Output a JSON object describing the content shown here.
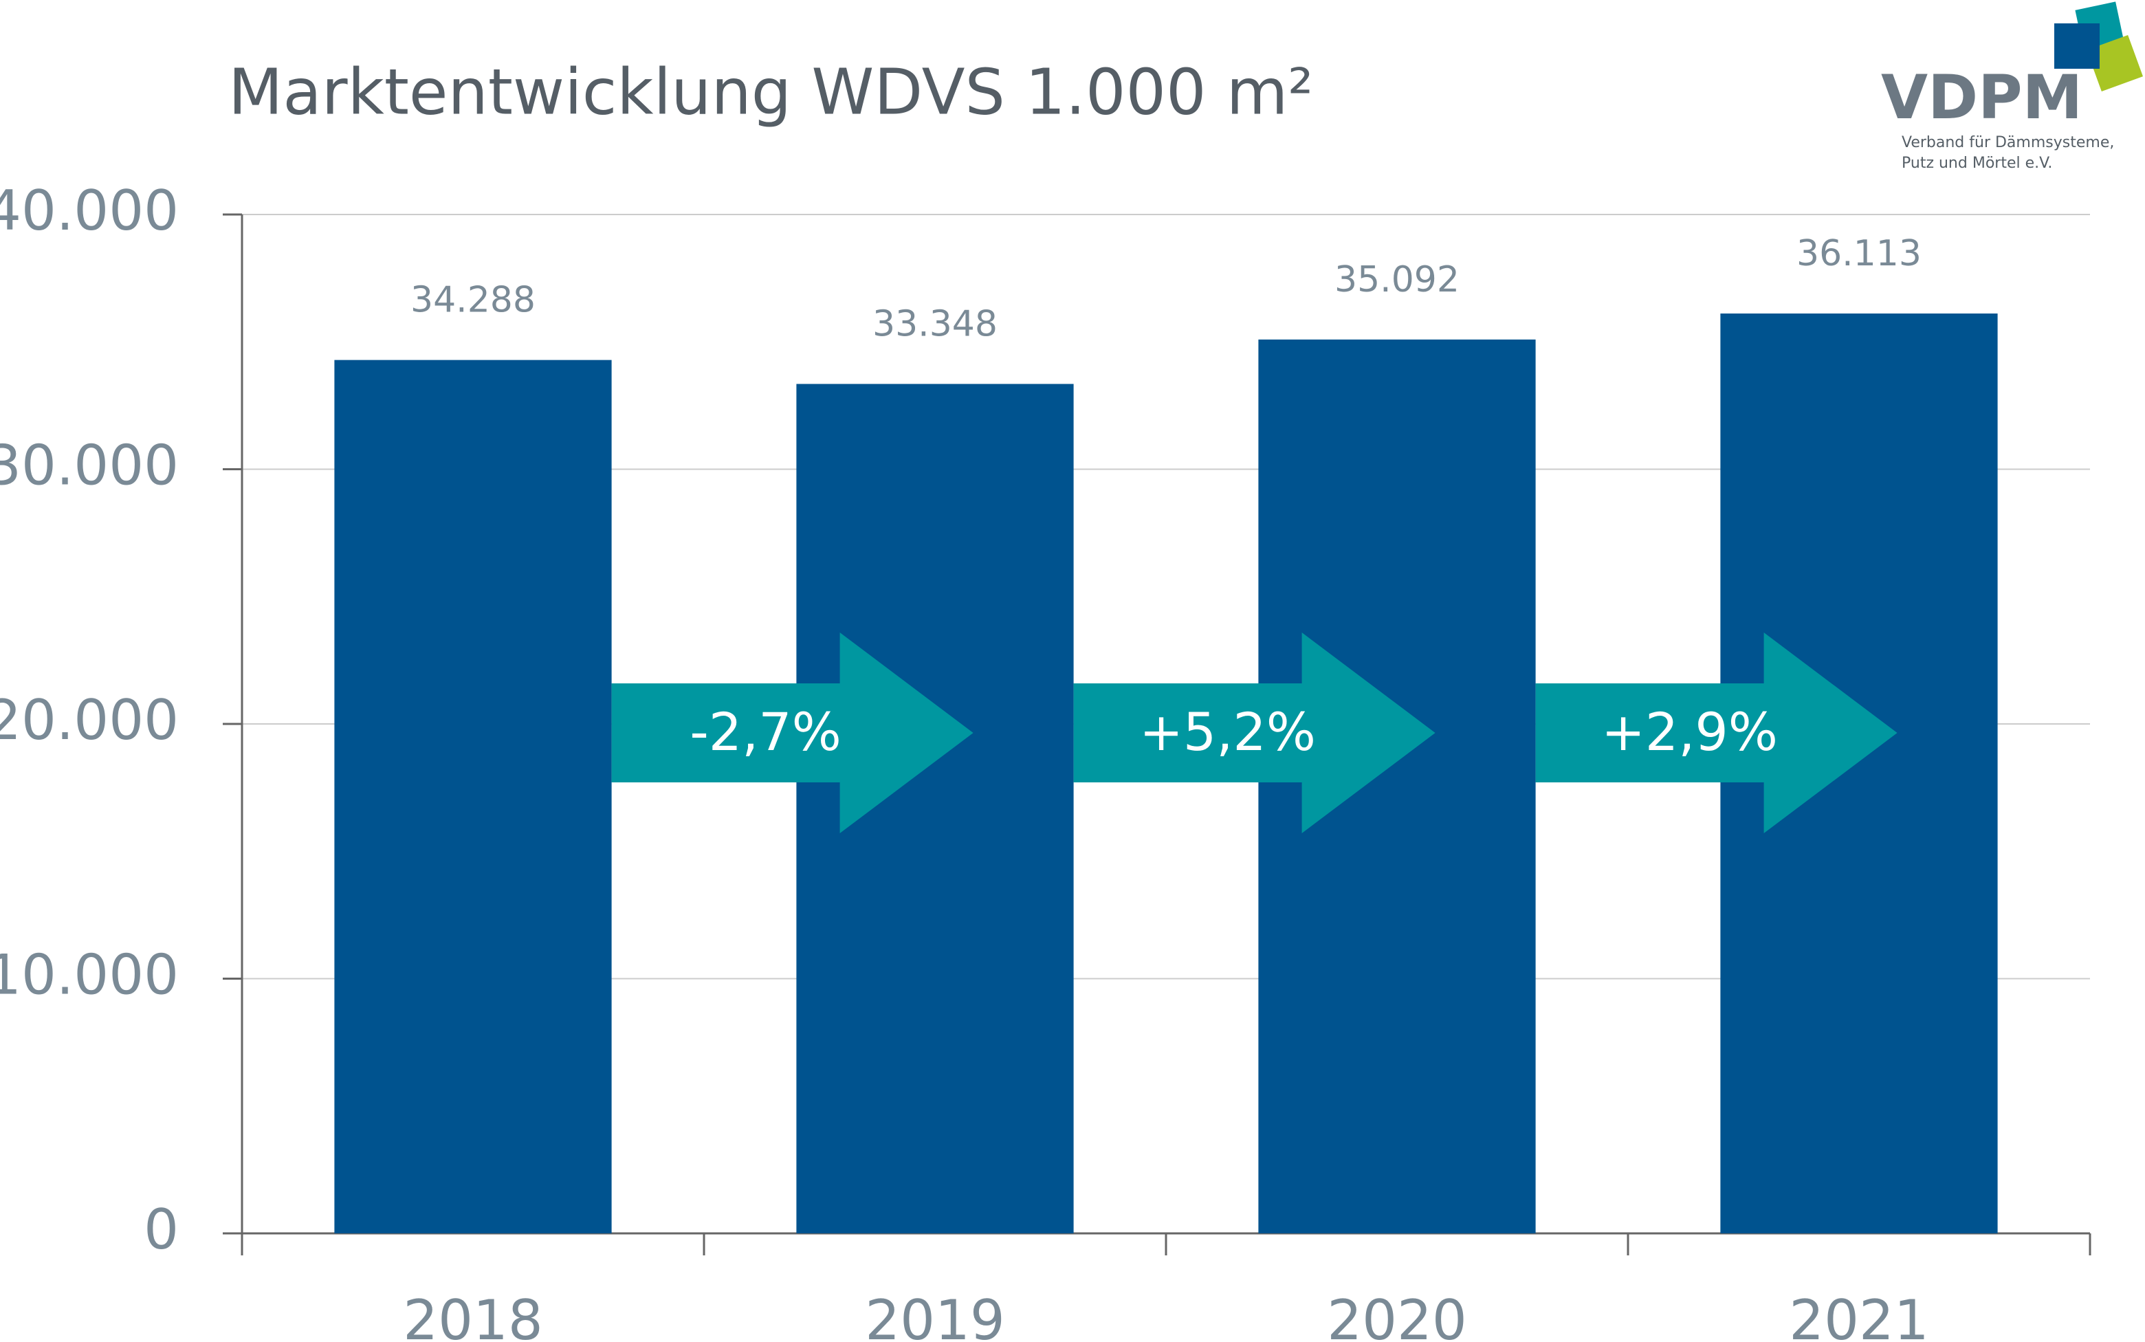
{
  "chart_data": {
    "type": "bar",
    "title": "Marktentwicklung WDVS 1.000 m²",
    "categories": [
      "2018",
      "2019",
      "2020",
      "2021"
    ],
    "values": [
      34288,
      33348,
      35092,
      36113
    ],
    "value_labels": [
      "34.288",
      "33.348",
      "35.092",
      "36.113"
    ],
    "color": "#00538f",
    "ylim": [
      0,
      40000
    ],
    "yticks": [
      0,
      {
        "value": 10000,
        "label": "10.000"
      },
      {
        "value": 20000,
        "label": "20.000"
      },
      {
        "value": 30000,
        "label": "30.000"
      },
      {
        "value": 40000,
        "label": "40.000"
      }
    ],
    "grid": true,
    "annotations": [
      "-2,7%",
      "+5,2%",
      "+2,9%"
    ]
  },
  "logo": {
    "name": "VDPM",
    "line1": "Verband für Dämmsysteme,",
    "line2": "Putz und Mörtel e.V."
  }
}
